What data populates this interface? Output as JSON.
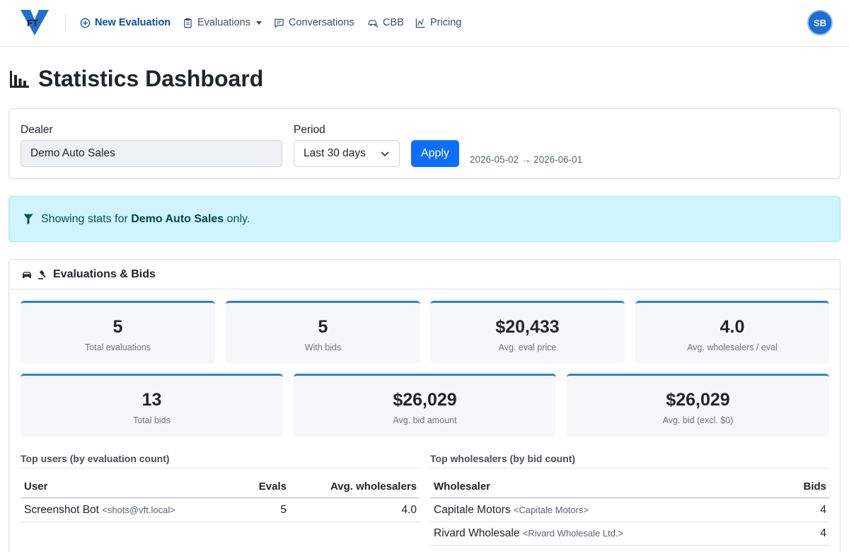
{
  "nav": {
    "logo_text": "FT",
    "new_evaluation": "New Evaluation",
    "evaluations": "Evaluations",
    "conversations": "Conversations",
    "cbb": "CBB",
    "pricing": "Pricing",
    "avatar_initials": "SB"
  },
  "page": {
    "title": "Statistics Dashboard"
  },
  "filters": {
    "dealer_label": "Dealer",
    "dealer_value": "Demo Auto Sales",
    "period_label": "Period",
    "period_value": "Last 30 days",
    "apply_label": "Apply",
    "date_range": "2026-05-02 → 2026-06-01"
  },
  "alert": {
    "prefix": "Showing stats for",
    "dealer": "Demo Auto Sales",
    "suffix": "only."
  },
  "section": {
    "title": "Evaluations & Bids",
    "stats_row1": [
      {
        "value": "5",
        "caption": "Total evaluations"
      },
      {
        "value": "5",
        "caption": "With bids"
      },
      {
        "value": "$20,433",
        "caption": "Avg. eval price"
      },
      {
        "value": "4.0",
        "caption": "Avg. wholesalers / eval"
      }
    ],
    "stats_row2": [
      {
        "value": "13",
        "caption": "Total bids"
      },
      {
        "value": "$26,029",
        "caption": "Avg. bid amount"
      },
      {
        "value": "$26,029",
        "caption": "Avg. bid (excl. $0)"
      }
    ]
  },
  "top_users": {
    "title": "Top users (by evaluation count)",
    "headers": [
      "User",
      "Evals",
      "Avg. wholesalers"
    ],
    "rows": [
      {
        "name": "Screenshot Bot",
        "email": "<shots@vft.local>",
        "evals": "5",
        "avg": "4.0"
      }
    ]
  },
  "top_wholesalers": {
    "title": "Top wholesalers (by bid count)",
    "headers": [
      "Wholesaler",
      "Bids"
    ],
    "rows": [
      {
        "name": "Capitale Motors",
        "detail": "<Capitale Motors>",
        "bids": "4"
      },
      {
        "name": "Rivard Wholesale",
        "detail": "<Rivard Wholesale Ltd.>",
        "bids": "4"
      }
    ]
  },
  "colors": {
    "primary": "#0d6efd",
    "nav_active": "#0b4f9c",
    "stat_accent": "#2f7fd6",
    "alert_bg": "#cff4fc",
    "avatar_bg": "#1f6fd1"
  }
}
